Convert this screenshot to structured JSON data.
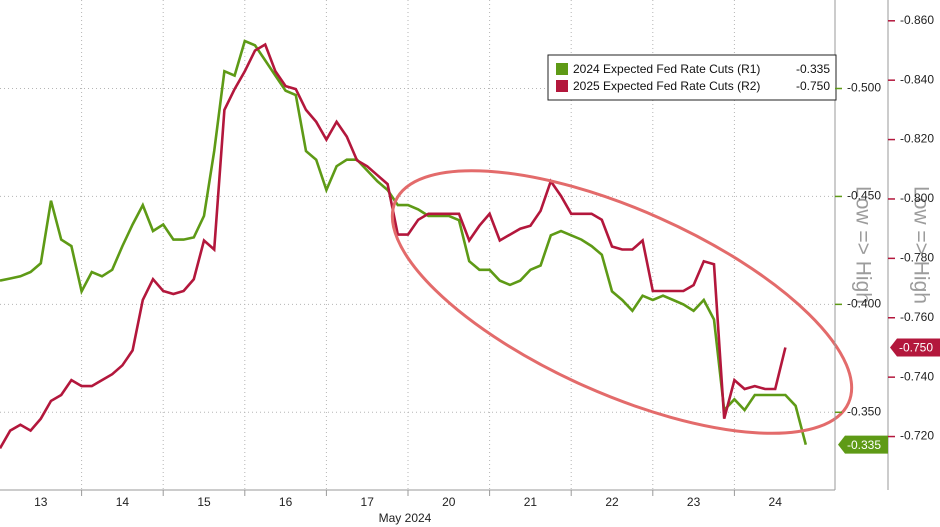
{
  "chart_data": {
    "type": "line",
    "x_label": "May 2024",
    "y_label": "Low => High",
    "y2_label": "Low => High",
    "grid": true,
    "legend": "top-right",
    "categories": [
      null,
      null,
      null,
      null,
      "13",
      null,
      null,
      null,
      null,
      null,
      null,
      null,
      "14",
      null,
      null,
      null,
      null,
      null,
      null,
      null,
      "15",
      null,
      null,
      null,
      null,
      null,
      null,
      null,
      "16",
      null,
      null,
      null,
      null,
      null,
      null,
      null,
      "17",
      null,
      null,
      null,
      null,
      null,
      null,
      null,
      "20",
      null,
      null,
      null,
      null,
      null,
      null,
      null,
      "21",
      null,
      null,
      null,
      null,
      null,
      null,
      null,
      "22",
      null,
      null,
      null,
      null,
      null,
      null,
      null,
      "23",
      null,
      null,
      null,
      null,
      null,
      null,
      null,
      "24",
      null,
      null,
      null
    ],
    "ylim": [
      -0.314,
      -0.541
    ],
    "yticks": [
      {
        "value": -0.5,
        "label": "-0.500"
      },
      {
        "value": -0.45,
        "label": "-0.450"
      },
      {
        "value": -0.4,
        "label": "-0.400"
      },
      {
        "value": -0.35,
        "label": "-0.350"
      }
    ],
    "y2lim": [
      -0.702,
      -0.867
    ],
    "y2ticks": [
      {
        "value": -0.86,
        "label": "-0.860"
      },
      {
        "value": -0.84,
        "label": "-0.840"
      },
      {
        "value": -0.82,
        "label": "-0.820"
      },
      {
        "value": -0.8,
        "label": "-0.800"
      },
      {
        "value": -0.78,
        "label": "-0.780"
      },
      {
        "value": -0.76,
        "label": "-0.760"
      },
      {
        "value": -0.74,
        "label": "-0.740"
      },
      {
        "value": -0.72,
        "label": "-0.720"
      }
    ],
    "series": [
      {
        "name": "2024 Expected Fed Rate Cuts (R1)",
        "color": "#5e9a16",
        "axis": "y",
        "last_value_label": "-0.335",
        "values": [
          -0.411,
          -0.412,
          -0.413,
          -0.415,
          -0.419,
          -0.448,
          -0.43,
          -0.427,
          -0.406,
          -0.415,
          -0.413,
          -0.416,
          -0.427,
          -0.437,
          -0.446,
          -0.434,
          -0.437,
          -0.43,
          -0.43,
          -0.431,
          -0.441,
          -0.471,
          -0.508,
          -0.506,
          -0.522,
          -0.52,
          -0.513,
          -0.506,
          -0.499,
          -0.497,
          -0.471,
          -0.467,
          -0.453,
          -0.464,
          -0.467,
          -0.467,
          -0.462,
          -0.457,
          -0.453,
          -0.446,
          -0.446,
          -0.444,
          -0.441,
          -0.441,
          -0.441,
          -0.439,
          -0.42,
          -0.416,
          -0.416,
          -0.411,
          -0.409,
          -0.411,
          -0.416,
          -0.418,
          -0.432,
          -0.434,
          -0.432,
          -0.43,
          -0.427,
          -0.423,
          -0.406,
          -0.402,
          -0.397,
          -0.404,
          -0.402,
          -0.404,
          -0.402,
          -0.4,
          -0.397,
          -0.402,
          -0.393,
          -0.351,
          -0.356,
          -0.351,
          -0.358,
          -0.358,
          -0.358,
          -0.358,
          -0.353,
          -0.335
        ]
      },
      {
        "name": "2025 Expected Fed Rate Cuts (R2)",
        "color": "#b3173c",
        "axis": "y2",
        "last_value_label": "-0.750",
        "values": [
          -0.716,
          -0.722,
          -0.724,
          -0.722,
          -0.726,
          -0.732,
          -0.734,
          -0.739,
          -0.737,
          -0.737,
          -0.739,
          -0.741,
          -0.744,
          -0.749,
          -0.766,
          -0.773,
          -0.769,
          -0.768,
          -0.769,
          -0.773,
          -0.786,
          -0.783,
          -0.83,
          -0.837,
          -0.843,
          -0.85,
          -0.852,
          -0.843,
          -0.838,
          -0.837,
          -0.83,
          -0.826,
          -0.82,
          -0.826,
          -0.821,
          -0.813,
          -0.811,
          -0.808,
          -0.805,
          -0.788,
          -0.788,
          -0.793,
          -0.795,
          -0.795,
          -0.795,
          -0.795,
          -0.786,
          -0.791,
          -0.795,
          -0.786,
          -0.788,
          -0.79,
          -0.791,
          -0.796,
          -0.806,
          -0.801,
          -0.795,
          -0.795,
          -0.795,
          -0.793,
          -0.784,
          -0.783,
          -0.783,
          -0.786,
          -0.769,
          -0.769,
          -0.769,
          -0.769,
          -0.771,
          -0.779,
          -0.778,
          -0.726,
          -0.739,
          -0.736,
          -0.737,
          -0.736,
          -0.736,
          -0.75,
          null,
          null
        ]
      }
    ]
  }
}
